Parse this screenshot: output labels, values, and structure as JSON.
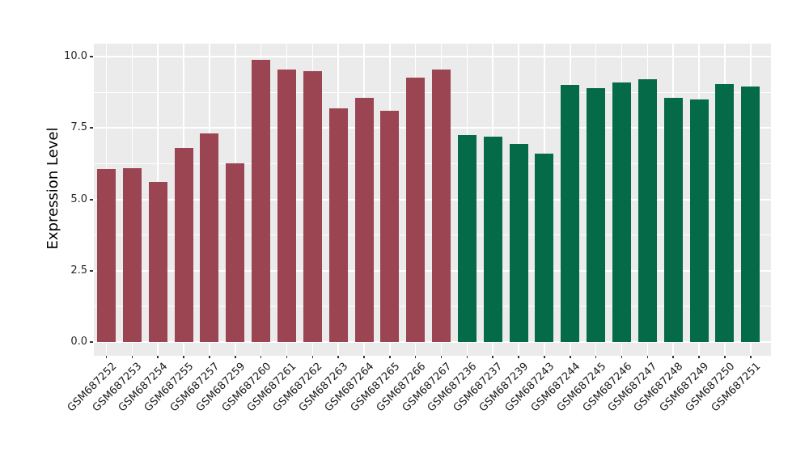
{
  "figure": {
    "background": "#FFFFFF",
    "panel_background": "#EBEBEB",
    "gridline_color": "#FFFFFF",
    "tick_mark_color": "#333333",
    "tick_label_color": "#262626",
    "axis_title_color": "#000000"
  },
  "chart_data": {
    "type": "bar",
    "title": "",
    "xlabel": "",
    "ylabel": "Expression Level",
    "ylim": [
      0,
      10.5
    ],
    "grid": true,
    "legend_position": "none",
    "yticks": [
      0,
      2.5,
      5,
      7.5,
      10
    ],
    "ytick_labels": [
      "0.0",
      "2.5",
      "5.0",
      "7.5",
      "10.0"
    ],
    "minor_yticks": [
      1.25,
      3.75,
      6.25,
      8.75
    ],
    "categories": [
      "GSM687252",
      "GSM687253",
      "GSM687254",
      "GSM687255",
      "GSM687257",
      "GSM687259",
      "GSM687260",
      "GSM687261",
      "GSM687262",
      "GSM687263",
      "GSM687264",
      "GSM687265",
      "GSM687266",
      "GSM687267",
      "GSM687236",
      "GSM687237",
      "GSM687239",
      "GSM687243",
      "GSM687244",
      "GSM687245",
      "GSM687246",
      "GSM687247",
      "GSM687248",
      "GSM687249",
      "GSM687250",
      "GSM687251"
    ],
    "values": [
      6.05,
      6.1,
      5.6,
      6.8,
      7.3,
      6.25,
      9.9,
      9.55,
      9.5,
      8.2,
      8.55,
      8.1,
      9.25,
      9.55,
      7.25,
      7.2,
      6.95,
      6.6,
      9.0,
      8.9,
      9.1,
      9.2,
      8.55,
      8.5,
      9.05,
      8.95
    ],
    "groups": [
      "red",
      "red",
      "red",
      "red",
      "red",
      "red",
      "red",
      "red",
      "red",
      "red",
      "red",
      "red",
      "red",
      "red",
      "green",
      "green",
      "green",
      "green",
      "green",
      "green",
      "green",
      "green",
      "green",
      "green",
      "green",
      "green"
    ],
    "group_colors": {
      "red": "#9B4452",
      "green": "#046A47"
    }
  }
}
